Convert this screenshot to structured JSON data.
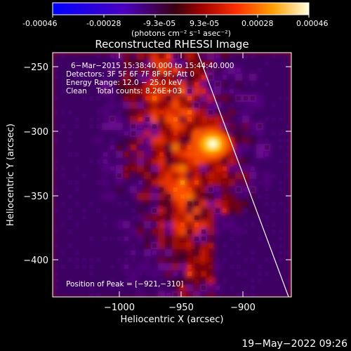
{
  "colorbar": {
    "ticks": [
      "-0.00046",
      "-0.00028",
      "-9.3e-05",
      "9.3e-05",
      "0.00028",
      "0.00046"
    ],
    "unit_label": "(photons cm⁻² s⁻¹ asec⁻²)"
  },
  "plot": {
    "title": "Reconstructed RHESSI Image",
    "xlabel": "Heliocentric X (arcsec)",
    "ylabel": "Heliocentric Y (arcsec)",
    "xticks": [
      "−1000",
      "−950",
      "−900"
    ],
    "yticks": [
      "−250",
      "−300",
      "−350",
      "−400"
    ]
  },
  "annotations": {
    "line1": "6−Mar−2015 15:38:40.000 to 15:44:40.000",
    "line2": "Detectors: 3F 5F 6F 7F 8F 9F, Att 0",
    "line3": "Energy Range: 12.0 − 25.0 keV",
    "line4": "Clean    Total counts: 8.26E+03",
    "peak": "Position of Peak = [−921,−310]"
  },
  "footer": {
    "timestamp": "19−May−2022 09:26"
  },
  "chart_data": {
    "type": "heatmap",
    "title": "Reconstructed RHESSI Image",
    "xlabel": "Heliocentric X (arcsec)",
    "ylabel": "Heliocentric Y (arcsec)",
    "xlim": [
      -1048,
      -872
    ],
    "ylim": [
      -430,
      -240
    ],
    "colorbar_range": [
      -0.00046,
      0.00046
    ],
    "peak_position": [
      -921,
      -310
    ],
    "limb_line": [
      [
        -941,
        -240
      ],
      [
        -874,
        -430
      ]
    ],
    "colors": {
      "background": "#000000",
      "axes": "#ffffff"
    }
  }
}
